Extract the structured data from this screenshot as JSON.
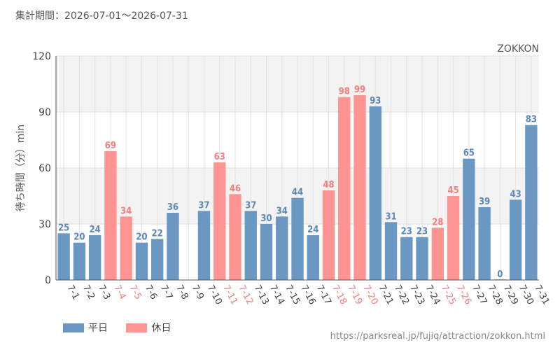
{
  "header": {
    "period": "集計期間：2026-07-01〜2026-07-31"
  },
  "legend": {
    "items": [
      {
        "label": "平日",
        "color": "#6a98c2"
      },
      {
        "label": "休日",
        "color": "#ff9493"
      }
    ]
  },
  "footer": {
    "source": "https://parksreal.jp/fujiq/attraction/zokkon.html"
  },
  "colors": {
    "weekday": "#6a98c2",
    "holiday": "#ff9493",
    "weekday_label": "#5b88b5",
    "holiday_label": "#f07f7f"
  },
  "chart_data": {
    "type": "bar",
    "title": "ZOKKON",
    "ylabel": "待ち時間（分）min",
    "xlabel": "",
    "ylim": [
      0,
      120
    ],
    "yticks": [
      0,
      30,
      60,
      90,
      120
    ],
    "grid": true,
    "legend_position": "bottom-left",
    "categories": [
      "7-1",
      "7-2",
      "7-3",
      "7-4",
      "7-5",
      "7-6",
      "7-7",
      "7-8",
      "7-9",
      "7-10",
      "7-11",
      "7-12",
      "7-13",
      "7-14",
      "7-15",
      "7-16",
      "7-17",
      "7-18",
      "7-19",
      "7-20",
      "7-21",
      "7-22",
      "7-23",
      "7-24",
      "7-25",
      "7-26",
      "7-27",
      "7-28",
      "7-29",
      "7-30",
      "7-31"
    ],
    "values": [
      25,
      20,
      24,
      69,
      34,
      20,
      22,
      36,
      null,
      37,
      63,
      46,
      37,
      30,
      34,
      44,
      24,
      48,
      98,
      99,
      93,
      31,
      23,
      23,
      28,
      45,
      65,
      39,
      0,
      43,
      83
    ],
    "day_type": [
      "平日",
      "平日",
      "平日",
      "休日",
      "休日",
      "平日",
      "平日",
      "平日",
      "平日",
      "平日",
      "休日",
      "休日",
      "平日",
      "平日",
      "平日",
      "平日",
      "平日",
      "休日",
      "休日",
      "休日",
      "平日",
      "平日",
      "平日",
      "平日",
      "休日",
      "休日",
      "平日",
      "平日",
      "平日",
      "平日",
      "平日"
    ]
  }
}
